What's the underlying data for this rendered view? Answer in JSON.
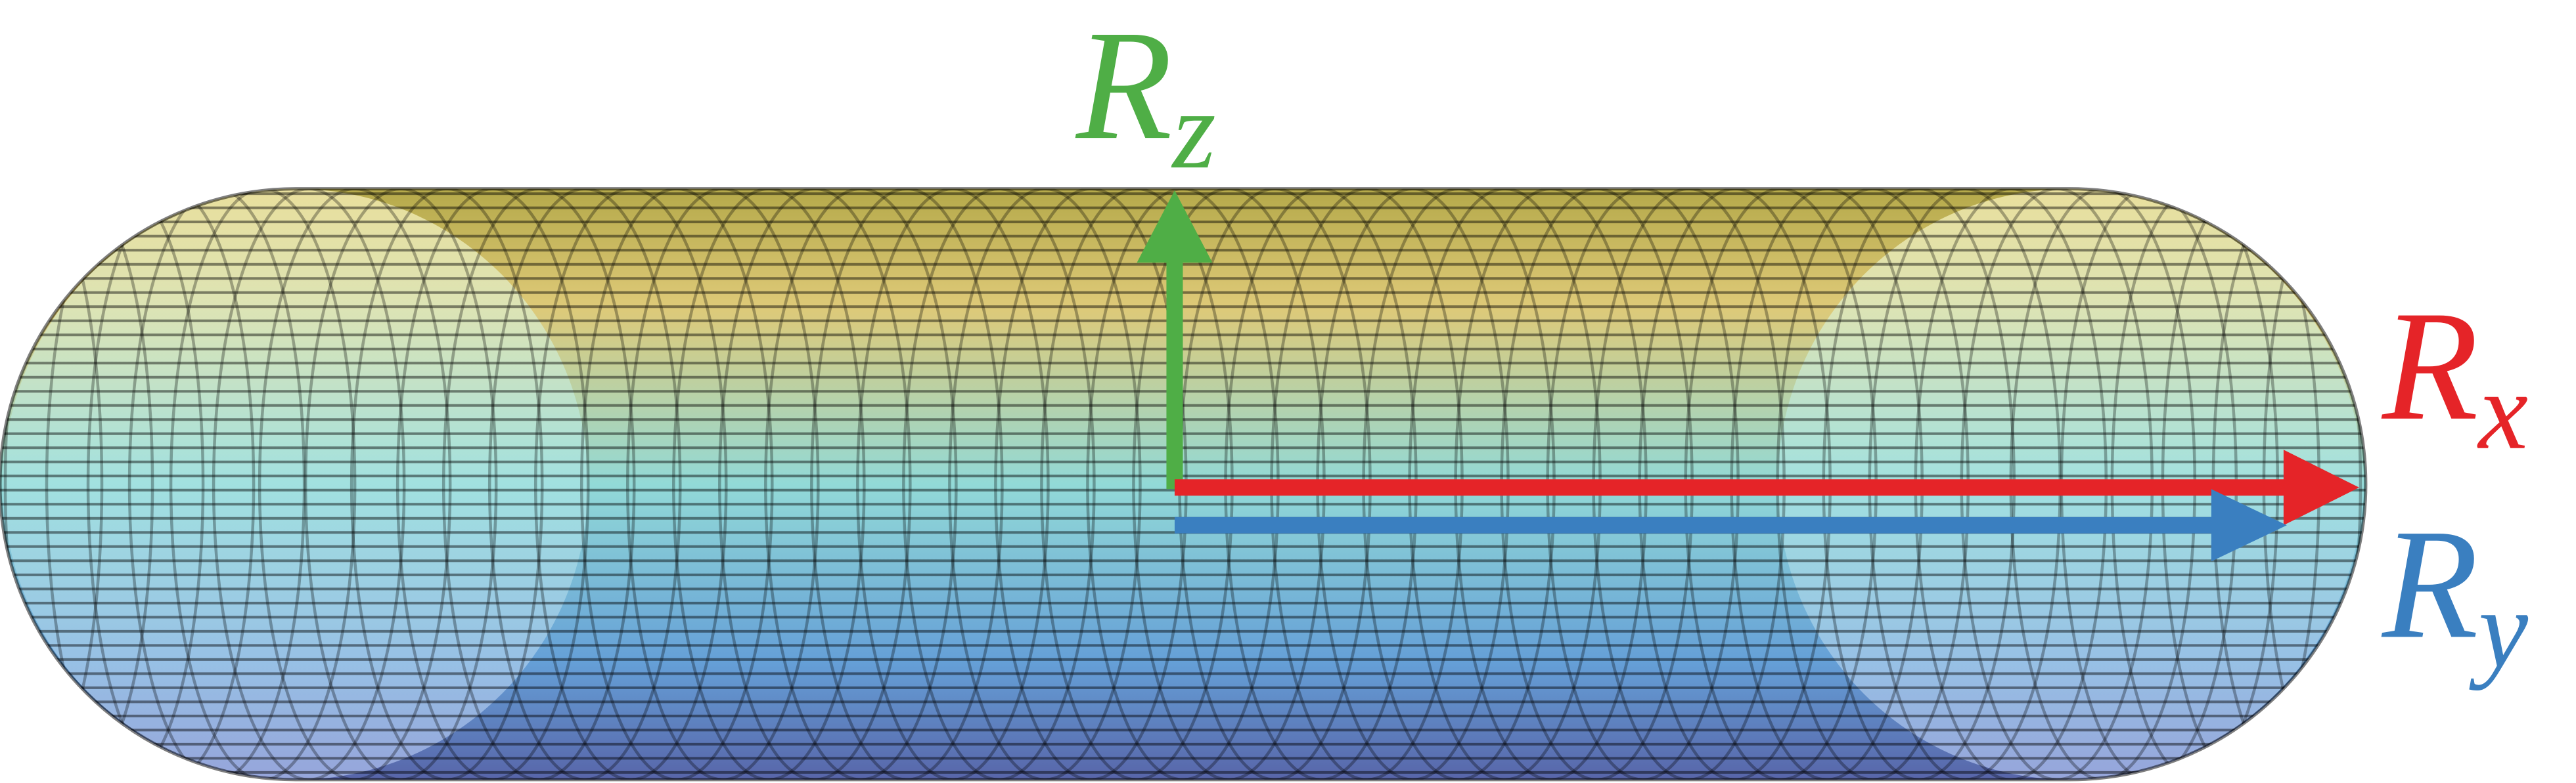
{
  "labels": {
    "rz": {
      "symbol": "R",
      "subscript": "z"
    },
    "rx": {
      "symbol": "R",
      "subscript": "x"
    },
    "ry": {
      "symbol": "R",
      "subscript": "y"
    }
  }
}
